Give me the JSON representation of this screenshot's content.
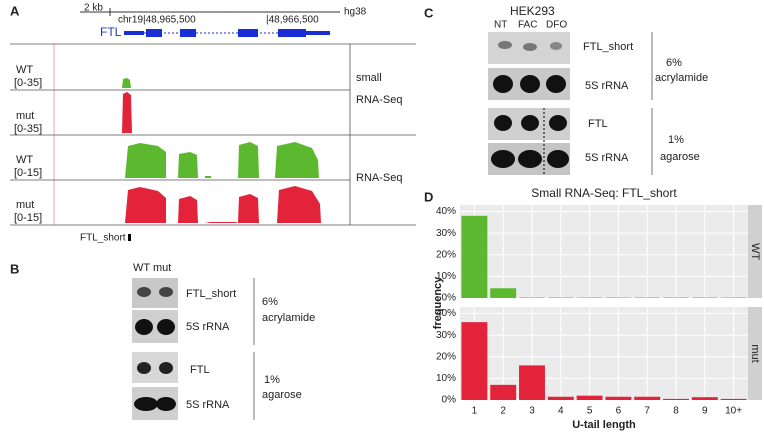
{
  "panel_a": {
    "label": "A",
    "scale": "2 kb",
    "assembly": "hg38",
    "coord_left": "chr19|48,965,500",
    "coord_right": "|48,966,500",
    "gene": "FTL",
    "tracks": [
      {
        "name": "WT",
        "range": "[0-35]"
      },
      {
        "name": "mut",
        "range": "[0-35]"
      },
      {
        "name": "WT",
        "range": "[0-15]"
      },
      {
        "name": "mut",
        "range": "[0-15]"
      }
    ],
    "group_small": [
      "small",
      "RNA-Seq"
    ],
    "group_rna": "RNA-Seq",
    "feature": "FTL_short"
  },
  "panel_b": {
    "label": "B",
    "lanes": "WT mut",
    "bands": [
      "FTL_short",
      "5S rRNA",
      "FTL",
      "5S rRNA"
    ],
    "gel1": [
      "6%",
      "acrylamide"
    ],
    "gel2": [
      "1%",
      "agarose"
    ]
  },
  "panel_c": {
    "label": "C",
    "cell_line": "HEK293",
    "lanes": [
      "NT",
      "FAC",
      "DFO"
    ],
    "bands": [
      "FTL_short",
      "5S rRNA",
      "FTL",
      "5S rRNA"
    ],
    "gel1": [
      "6%",
      "acrylamide"
    ],
    "gel2": [
      "1%",
      "agarose"
    ]
  },
  "panel_d_label": "D",
  "chart_data": {
    "type": "bar",
    "title": "Small RNA-Seq: FTL_short",
    "categories": [
      "1",
      "2",
      "3",
      "4",
      "5",
      "6",
      "7",
      "8",
      "9",
      "10+"
    ],
    "series": [
      {
        "name": "WT",
        "color": "#5cb82e",
        "values": [
          38,
          4.5,
          0.2,
          0.2,
          0.2,
          0.2,
          0.2,
          0.2,
          0.2,
          0.2
        ]
      },
      {
        "name": "mut",
        "color": "#e2233a",
        "values": [
          36,
          7,
          16,
          1.5,
          2,
          1.5,
          1.5,
          0.5,
          1.3,
          0.5
        ]
      }
    ],
    "ylim": [
      0,
      43
    ],
    "yticks": [
      {
        "value": 0,
        "label": "0%"
      },
      {
        "value": 10,
        "label": "10%"
      },
      {
        "value": 20,
        "label": "20%"
      },
      {
        "value": 30,
        "label": "30%"
      },
      {
        "value": 40,
        "label": "40%"
      }
    ],
    "xlabel": "U-tail length",
    "ylabel": "frequency",
    "grid": true
  }
}
